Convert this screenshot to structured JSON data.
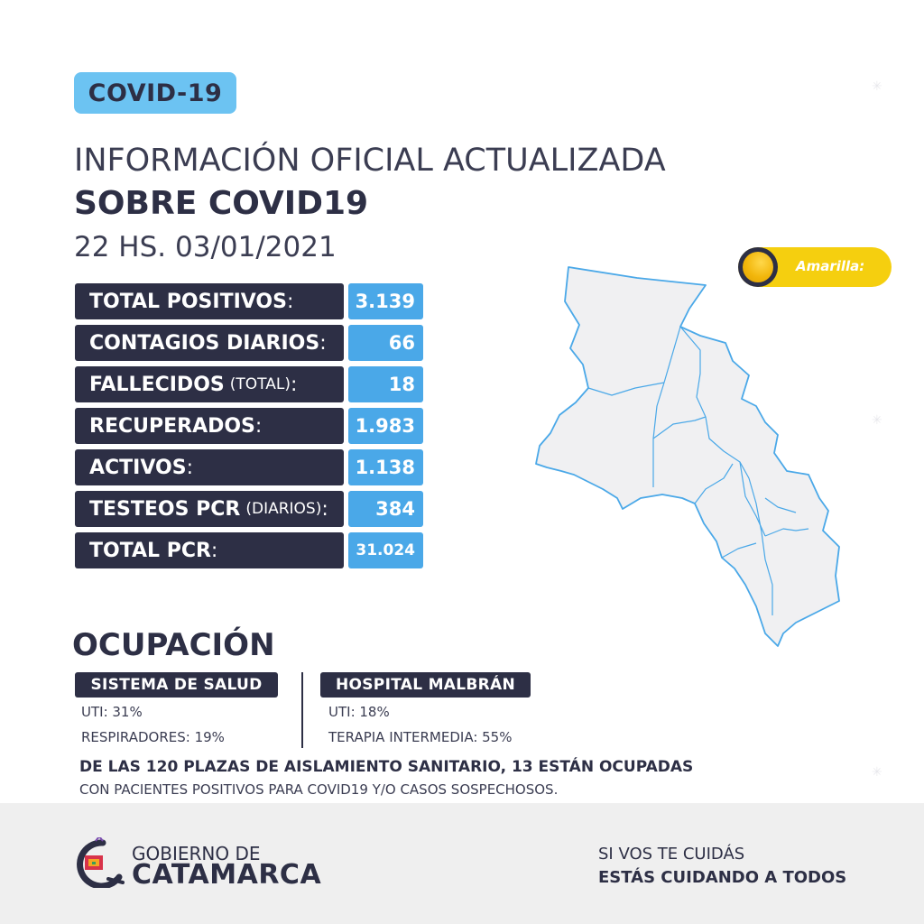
{
  "badge": "COVID-19",
  "title": {
    "line1": "INFORMACIÓN OFICIAL ACTUALIZADA",
    "line2": "SOBRE COVID19",
    "line3": "22 HS. 03/01/2021"
  },
  "stats": [
    {
      "label": "TOTAL POSITIVOS",
      "sub": "",
      "colon": ":",
      "value": "3.139"
    },
    {
      "label": "CONTAGIOS DIARIOS",
      "sub": "",
      "colon": ":",
      "value": "66"
    },
    {
      "label": "FALLECIDOS",
      "sub": "(TOTAL)",
      "colon": ":",
      "value": "18"
    },
    {
      "label": "RECUPERADOS",
      "sub": "",
      "colon": ":",
      "value": "1.983"
    },
    {
      "label": "ACTIVOS",
      "sub": "",
      "colon": ":",
      "value": "1.138"
    },
    {
      "label": "TESTEOS PCR",
      "sub": "(DIARIOS)",
      "colon": ":",
      "value": "384"
    },
    {
      "label": "TOTAL PCR",
      "sub": "",
      "colon": ":",
      "value": "31.024"
    }
  ],
  "status": {
    "label": "Amarilla:",
    "color": "#f5cf0f"
  },
  "ocupacion": {
    "title": "OCUPACIÓN",
    "sistema": {
      "tag": "SISTEMA DE SALUD",
      "uti": "UTI: 31%",
      "respiradores": "RESPIRADORES: 19%"
    },
    "hospital": {
      "tag": "HOSPITAL MALBRÁN",
      "uti": "UTI: 18%",
      "terapia": "TERAPIA INTERMEDIA: 55%"
    },
    "note_bold": "DE LAS 120 PLAZAS DE AISLAMIENTO SANITARIO, 13 ESTÁN OCUPADAS",
    "note_normal": "CON PACIENTES POSITIVOS PARA COVID19 Y/O CASOS SOSPECHOSOS."
  },
  "footer": {
    "gov_line1": "GOBIERNO DE",
    "gov_line2": "CATAMARCA",
    "slogan1": "SI VOS TE CUIDÁS",
    "slogan2": "ESTÁS CUIDANDO A TODOS"
  },
  "icons": {
    "logo": "catamarca-logo-icon",
    "map": "catamarca-map-icon",
    "sun": "sun-icon"
  },
  "colors": {
    "dark": "#2d2f45",
    "blue": "#4aa8e8",
    "badge": "#6cc3f2",
    "yellow": "#f5cf0f",
    "map_fill": "#f0f0f2",
    "map_stroke": "#4aa8e8"
  }
}
